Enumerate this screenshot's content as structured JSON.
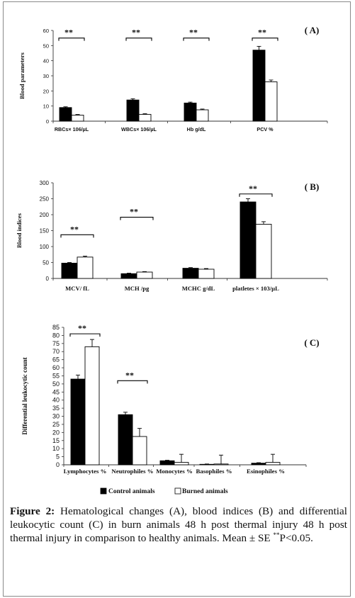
{
  "chart_data": [
    {
      "type": "bar",
      "panel_label": "( A)",
      "ylabel": "Blood parameters",
      "categories": [
        "RBCs× 106/µL",
        "WBCs× 106/µL",
        "Hb g/dL",
        "PCV %"
      ],
      "ylim": [
        0,
        60
      ],
      "yticks": [
        0,
        10,
        20,
        30,
        40,
        50,
        60
      ],
      "series": [
        {
          "name": "Control animals",
          "values": [
            9,
            14,
            12,
            47
          ],
          "errors": [
            0.5,
            0.8,
            0.6,
            2.5
          ]
        },
        {
          "name": "Burned animals",
          "values": [
            4,
            4.5,
            7.5,
            26
          ],
          "errors": [
            0.4,
            0.4,
            0.5,
            1.2
          ]
        }
      ],
      "significance": [
        {
          "category_index": 0,
          "label": "**",
          "y": 55
        },
        {
          "category_index": 1,
          "label": "**",
          "y": 55
        },
        {
          "category_index": 2,
          "label": "**",
          "y": 55
        },
        {
          "category_index": 3,
          "label": "**",
          "y": 55
        }
      ]
    },
    {
      "type": "bar",
      "panel_label": "( B)",
      "ylabel": "Blood indices",
      "categories": [
        "MCV/ fL",
        "MCH /pg",
        "MCHC g/dL",
        "platletes × 103/µL"
      ],
      "ylim": [
        0,
        300
      ],
      "yticks": [
        0,
        50,
        100,
        150,
        200,
        250,
        300
      ],
      "series": [
        {
          "name": "Control animals",
          "values": [
            48,
            15,
            32,
            240
          ],
          "errors": [
            2,
            1.5,
            2,
            10
          ]
        },
        {
          "name": "Burned animals",
          "values": [
            67,
            20,
            29,
            170
          ],
          "errors": [
            3,
            1.5,
            2,
            8
          ]
        }
      ],
      "significance": [
        {
          "category_index": 0,
          "label": "**",
          "y": 137
        },
        {
          "category_index": 1,
          "label": "**",
          "y": 192
        },
        {
          "category_index": 3,
          "label": "**",
          "y": 265
        }
      ]
    },
    {
      "type": "bar",
      "panel_label": "( C)",
      "ylabel": "Differential leukocytic count",
      "categories": [
        "Lymphocytes %",
        "Neutrophiles %",
        "Monocytes %",
        "Basophiles %",
        "Esinophiles %"
      ],
      "ylim": [
        0,
        85
      ],
      "yticks": [
        0,
        5,
        10,
        15,
        20,
        25,
        30,
        35,
        40,
        45,
        50,
        55,
        60,
        65,
        70,
        75,
        80,
        85
      ],
      "series": [
        {
          "name": "Control animals",
          "values": [
            53,
            31,
            2.5,
            0.3,
            1
          ],
          "errors": [
            2.5,
            1.5,
            0.3,
            0.2,
            0.3
          ]
        },
        {
          "name": "Burned animals",
          "values": [
            73,
            17.5,
            1.5,
            0.5,
            1.5
          ],
          "errors": [
            4.5,
            5,
            5,
            5.5,
            5
          ]
        }
      ],
      "significance": [
        {
          "category_index": 0,
          "label": "**",
          "y": 81
        },
        {
          "category_index": 1,
          "label": "**",
          "y": 52
        }
      ]
    }
  ],
  "colors": {
    "control": "#000000",
    "burned": "#ffffff",
    "axis": "#333333"
  },
  "caption": {
    "figure_label": "Figure 2:",
    "text": " Hematological changes (A), blood indices (B) and differential leukocytic count (C) in burn animals 48 h post thermal injury 48 h post thermal injury in comparison to healthy animals. Mean ± SE ",
    "sig_superscript": "**",
    "sig_text": "P<0.05."
  }
}
